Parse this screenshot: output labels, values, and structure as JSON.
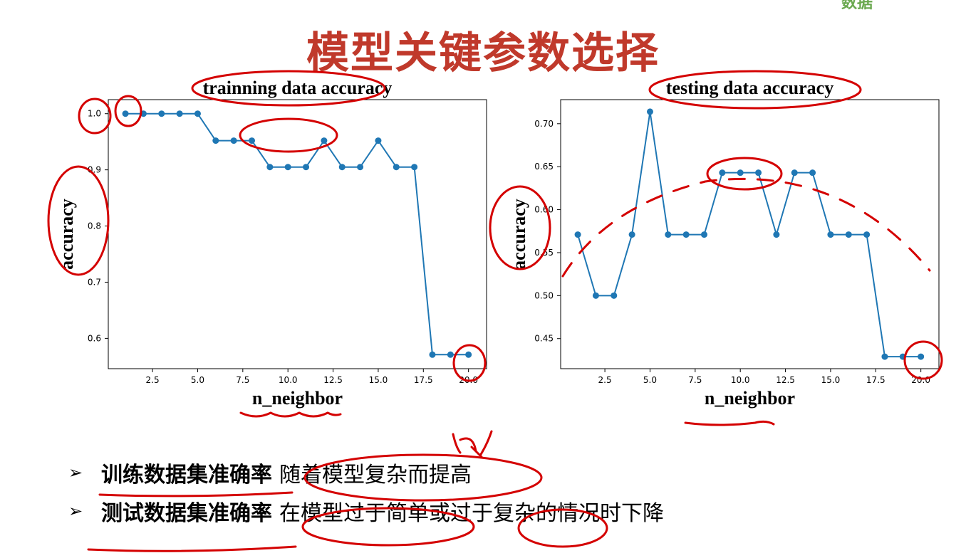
{
  "slide": {
    "title": "模型关键参数选择",
    "logo_text": "数据"
  },
  "chart_data": [
    {
      "type": "line",
      "title": "trainning data accuracy",
      "xlabel": "n_neighbor",
      "ylabel": "accuracy",
      "x": [
        1,
        2,
        3,
        4,
        5,
        6,
        7,
        8,
        9,
        10,
        11,
        12,
        13,
        14,
        15,
        16,
        17,
        18,
        19,
        20
      ],
      "values": [
        1.0,
        1.0,
        1.0,
        1.0,
        1.0,
        0.952,
        0.952,
        0.952,
        0.905,
        0.905,
        0.905,
        0.952,
        0.905,
        0.905,
        0.952,
        0.905,
        0.905,
        0.571,
        0.571,
        0.571
      ],
      "xlim": [
        0.05,
        21.0
      ],
      "ylim": [
        0.546,
        1.025
      ],
      "xticks": [
        "2.5",
        "5.0",
        "7.5",
        "10.0",
        "12.5",
        "15.0",
        "17.5",
        "20.0"
      ],
      "yticks": [
        "0.6",
        "0.7",
        "0.8",
        "0.9",
        "1.0"
      ],
      "color": "#1f77b4",
      "grid": false
    },
    {
      "type": "line",
      "title": "testing data accuracy",
      "xlabel": "n_neighbor",
      "ylabel": "accuracy",
      "x": [
        1,
        2,
        3,
        4,
        5,
        6,
        7,
        8,
        9,
        10,
        11,
        12,
        13,
        14,
        15,
        16,
        17,
        18,
        19,
        20
      ],
      "values": [
        0.571,
        0.5,
        0.5,
        0.571,
        0.714,
        0.571,
        0.571,
        0.571,
        0.643,
        0.643,
        0.643,
        0.571,
        0.643,
        0.643,
        0.571,
        0.571,
        0.571,
        0.429,
        0.429,
        0.429
      ],
      "xlim": [
        0.05,
        21.0
      ],
      "ylim": [
        0.415,
        0.728
      ],
      "xticks": [
        "2.5",
        "5.0",
        "7.5",
        "10.0",
        "12.5",
        "15.0",
        "17.5",
        "20.0"
      ],
      "yticks": [
        "0.45",
        "0.50",
        "0.55",
        "0.60",
        "0.65",
        "0.70"
      ],
      "color": "#1f77b4",
      "grid": false
    }
  ],
  "bullets": [
    {
      "bold": "训练数据集准确率",
      "text": "随着模型复杂而提高"
    },
    {
      "bold": "测试数据集准确率",
      "text": "在模型过于简单或过于复杂的情况时下降"
    }
  ],
  "arrow_glyph": "➢"
}
